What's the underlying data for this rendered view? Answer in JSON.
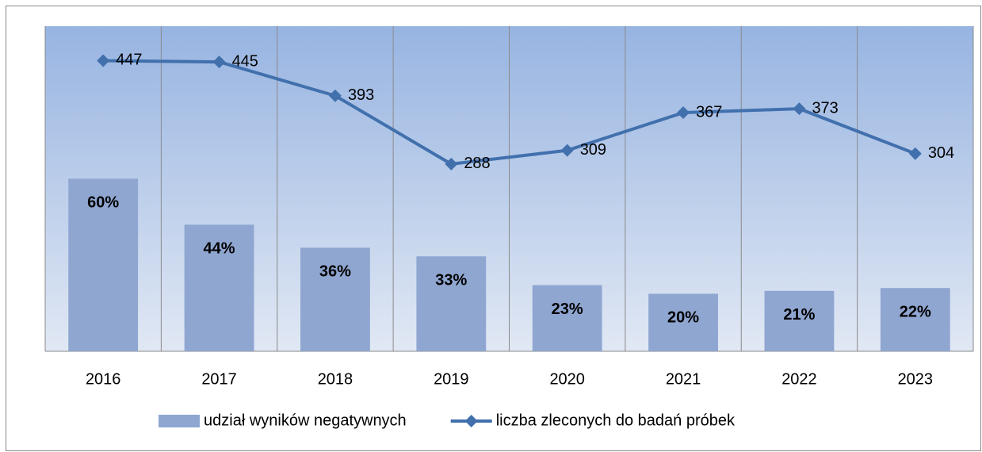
{
  "chart_data": {
    "type": "bar-line",
    "categories": [
      "2016",
      "2017",
      "2018",
      "2019",
      "2020",
      "2021",
      "2022",
      "2023"
    ],
    "series": [
      {
        "name": "udział wyników negatywnych",
        "type": "bar",
        "color": "#8fa6d1",
        "axis": "y",
        "values": [
          60,
          44,
          36,
          33,
          23,
          20,
          21,
          22
        ],
        "value_labels": [
          "60%",
          "44%",
          "36%",
          "33%",
          "23%",
          "20%",
          "21%",
          "22%"
        ]
      },
      {
        "name": "liczba zleconych do badań próbek",
        "type": "line",
        "color": "#4170ad",
        "axis": "y2",
        "values": [
          447,
          445,
          393,
          288,
          309,
          367,
          373,
          304
        ]
      }
    ],
    "ylim": [
      0,
      113
    ],
    "y2lim": [
      0,
      500
    ],
    "legend": "bottom"
  }
}
